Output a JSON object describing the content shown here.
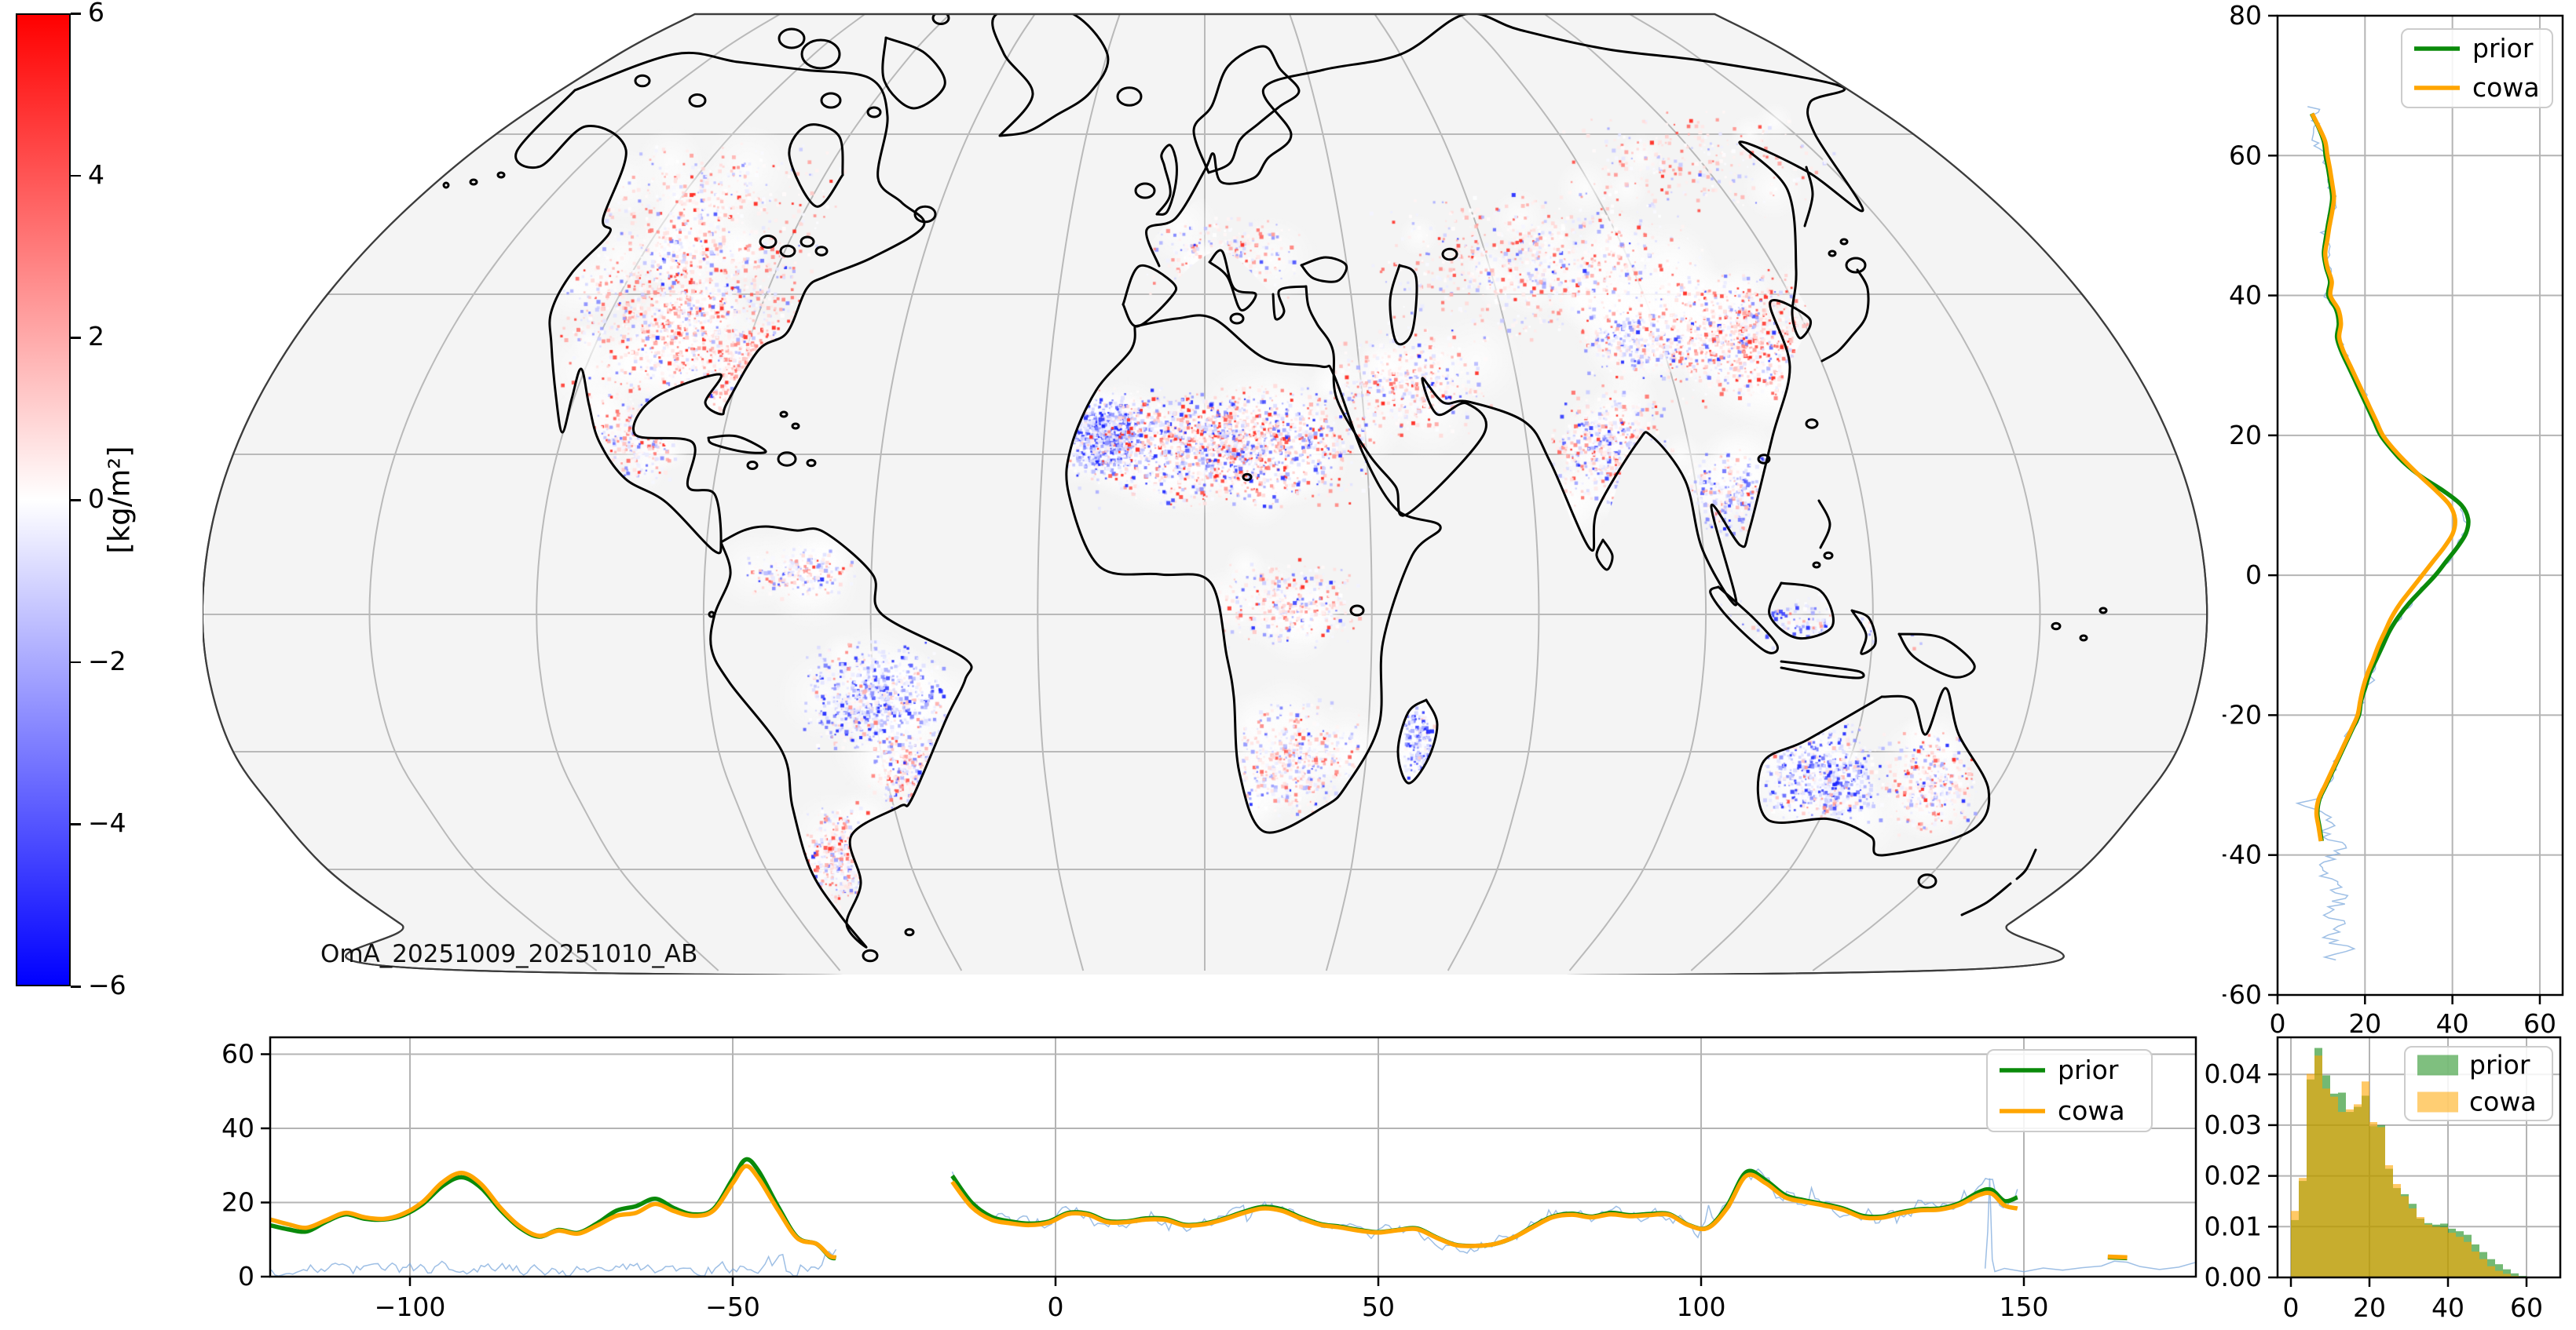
{
  "colorbar": {
    "label": "[kg/m²]",
    "ticks": [
      "6",
      "4",
      "2",
      "0",
      "−2",
      "−4",
      "−6"
    ],
    "tick_values": [
      6,
      4,
      2,
      0,
      -2,
      -4,
      -6
    ],
    "vmin": -6,
    "vmax": 6,
    "cmap": {
      "top": "#ff0000",
      "mid": "#ffffff",
      "bottom": "#0000ff"
    }
  },
  "map": {
    "annotation": "OmA_20251009_20251010_AB",
    "background": "#f4f4f4",
    "coast_color": "#000000",
    "grid_color": "#b9b9b9"
  },
  "legend": {
    "prior": "prior",
    "cowa": "cowa"
  },
  "colors": {
    "prior": "#0a8a0a",
    "cowa": "#ffa500",
    "noise": "rgba(125,170,220,0.75)",
    "grid": "#b4b4b4",
    "hist_prior": "rgba(0,128,0,0.55)",
    "hist_cowa": "rgba(255,165,0,0.6)"
  },
  "chart_data": [
    {
      "id": "zonal_profile",
      "type": "line",
      "orientation": "value_vs_latitude",
      "xlim": [
        0,
        65.2
      ],
      "xticks": [
        0,
        20,
        40,
        60
      ],
      "xtick_labels": [
        "0",
        "20",
        "40",
        "60"
      ],
      "ylim": [
        -60,
        80
      ],
      "yticks": [
        80,
        60,
        40,
        20,
        0,
        -20,
        -40,
        -60
      ],
      "ytick_labels": [
        "80",
        "60",
        "40",
        "20",
        "0",
        "−20",
        "−40",
        "−60"
      ],
      "legend": [
        "prior",
        "cowa"
      ],
      "lat": [
        66,
        64,
        62,
        60,
        58,
        56,
        54,
        52,
        50,
        48,
        46,
        44,
        42,
        40,
        38,
        36,
        34,
        32,
        30,
        28,
        26,
        24,
        22,
        20,
        18,
        16,
        14,
        12,
        10,
        8,
        6,
        4,
        2,
        0,
        -2,
        -4,
        -6,
        -8,
        -10,
        -12,
        -14,
        -16,
        -18,
        -20,
        -22,
        -24,
        -26,
        -28,
        -30,
        -32,
        -34,
        -36,
        -38
      ],
      "series": [
        {
          "name": "prior",
          "values": [
            7.8,
            9.4,
            10.6,
            11.0,
            11.6,
            12.1,
            12.5,
            12.1,
            11.5,
            11.0,
            10.6,
            11.1,
            12.0,
            11.6,
            13.4,
            14.0,
            13.6,
            14.6,
            16.1,
            17.6,
            19.1,
            20.6,
            22.1,
            23.6,
            26.1,
            29.1,
            33.1,
            38.1,
            42.1,
            43.6,
            43.1,
            41.1,
            38.6,
            36.1,
            33.1,
            30.1,
            27.6,
            25.6,
            24.1,
            22.6,
            21.1,
            20.1,
            19.1,
            18.6,
            17.1,
            15.6,
            14.1,
            12.6,
            11.1,
            9.6,
            9.1,
            9.6,
            10.1
          ]
        },
        {
          "name": "cowa",
          "values": [
            7.9,
            9.5,
            10.9,
            11.4,
            12.0,
            12.5,
            12.9,
            12.5,
            11.9,
            11.4,
            10.9,
            11.4,
            12.4,
            12.1,
            13.9,
            14.5,
            14.1,
            15.1,
            16.6,
            18.1,
            19.6,
            21.1,
            22.6,
            24.1,
            26.6,
            29.6,
            32.9,
            36.4,
            39.4,
            40.6,
            40.1,
            38.1,
            35.6,
            33.1,
            30.6,
            28.1,
            26.1,
            24.6,
            23.1,
            21.9,
            20.6,
            19.6,
            18.9,
            18.3,
            16.9,
            15.4,
            13.9,
            12.4,
            10.9,
            9.4,
            8.9,
            9.4,
            9.9
          ]
        }
      ]
    },
    {
      "id": "meridional_profile",
      "type": "line",
      "orientation": "value_vs_longitude",
      "xlim": [
        -122,
        177
      ],
      "xticks": [
        -100,
        -50,
        0,
        50,
        100,
        150
      ],
      "xtick_labels": [
        "−100",
        "−50",
        "0",
        "50",
        "100",
        "150"
      ],
      "ylim": [
        0,
        64.5
      ],
      "yticks": [
        0,
        20,
        40,
        60
      ],
      "ytick_labels": [
        "0",
        "20",
        "40",
        "60"
      ],
      "legend": [
        "prior",
        "cowa"
      ],
      "x": [
        -122,
        -119,
        -116,
        -113,
        -110,
        -107,
        -104,
        -101,
        -98,
        -95,
        -92,
        -89,
        -86,
        -83,
        -80,
        -77,
        -74,
        -71,
        -68,
        -65,
        -62,
        -59,
        -56,
        -53,
        -50,
        -48,
        -46,
        -43,
        -40,
        -37,
        -35,
        -34,
        -30,
        -25,
        -20,
        -16,
        -13,
        -10,
        -7,
        -4,
        -1,
        2,
        5,
        8,
        11,
        14,
        17,
        20,
        23,
        26,
        29,
        32,
        35,
        38,
        41,
        44,
        47,
        50,
        53,
        56,
        59,
        62,
        65,
        68,
        71,
        74,
        77,
        80,
        83,
        86,
        89,
        92,
        95,
        98,
        101,
        104,
        107,
        110,
        113,
        116,
        119,
        122,
        125,
        128,
        131,
        134,
        137,
        140,
        143,
        145,
        147,
        149,
        152,
        156,
        160,
        163,
        166
      ],
      "series": [
        {
          "name": "prior",
          "values": [
            14.0,
            12.8,
            12.2,
            14.8,
            16.8,
            15.6,
            15.4,
            16.6,
            19.6,
            24.4,
            26.8,
            24.0,
            18.0,
            13.2,
            10.8,
            12.6,
            11.8,
            14.4,
            17.8,
            19.0,
            21.0,
            18.4,
            16.8,
            18.2,
            26.4,
            31.6,
            28.5,
            19.0,
            10.6,
            8.8,
            5.4,
            5.0,
            null,
            null,
            null,
            27.2,
            20.0,
            16.2,
            14.9,
            14.3,
            14.9,
            17.2,
            17.0,
            15.0,
            14.9,
            15.7,
            15.6,
            14.0,
            14.3,
            15.6,
            17.4,
            18.8,
            18.2,
            16.0,
            14.2,
            13.5,
            12.6,
            12.0,
            12.6,
            13.0,
            10.6,
            8.6,
            8.3,
            8.8,
            10.6,
            13.6,
            16.2,
            17.0,
            16.2,
            17.2,
            16.6,
            16.9,
            16.9,
            14.0,
            13.2,
            19.0,
            28.2,
            26.0,
            22.0,
            20.6,
            19.6,
            18.4,
            16.4,
            16.2,
            17.4,
            18.2,
            18.4,
            19.8,
            22.8,
            23.4,
            20.4,
            21.4,
            null,
            null,
            null,
            5.2,
            5.0
          ]
        },
        {
          "name": "cowa",
          "values": [
            15.6,
            14.2,
            13.2,
            15.2,
            17.2,
            16.0,
            15.6,
            17.0,
            20.2,
            25.4,
            28.0,
            25.0,
            18.6,
            13.6,
            11.0,
            12.4,
            11.6,
            13.8,
            16.4,
            17.2,
            19.6,
            17.6,
            16.4,
            17.8,
            25.2,
            29.8,
            26.5,
            18.0,
            10.4,
            8.8,
            5.6,
            5.2,
            null,
            null,
            null,
            25.6,
            18.8,
            15.4,
            14.4,
            13.9,
            14.6,
            16.9,
            16.7,
            14.7,
            14.7,
            15.4,
            15.3,
            13.8,
            14.1,
            15.4,
            17.1,
            18.4,
            17.8,
            15.7,
            14.0,
            13.3,
            12.4,
            11.9,
            12.5,
            12.8,
            10.5,
            8.5,
            8.3,
            8.8,
            10.6,
            13.4,
            16.0,
            16.7,
            16.0,
            16.8,
            16.3,
            16.6,
            16.7,
            13.9,
            13.1,
            18.4,
            27.2,
            25.2,
            21.4,
            20.2,
            19.2,
            18.0,
            16.0,
            15.9,
            17.1,
            17.9,
            18.1,
            19.4,
            22.0,
            22.4,
            19.2,
            18.4,
            null,
            null,
            null,
            5.4,
            5.2
          ]
        }
      ]
    },
    {
      "id": "histogram",
      "type": "bar",
      "bin_start": 0,
      "bin_width": 2,
      "xlim": [
        -3.4,
        68.6
      ],
      "xticks": [
        0,
        20,
        40,
        60
      ],
      "xtick_labels": [
        "0",
        "20",
        "40",
        "60"
      ],
      "ylim": [
        0,
        0.0473
      ],
      "yticks": [
        0.0,
        0.01,
        0.02,
        0.03,
        0.04
      ],
      "ytick_labels": [
        "0.00",
        "0.01",
        "0.02",
        "0.03",
        "0.04"
      ],
      "legend": [
        "prior",
        "cowa"
      ],
      "series": [
        {
          "name": "prior",
          "values": [
            0.0113,
            0.019,
            0.039,
            0.0452,
            0.0398,
            0.0362,
            0.0364,
            0.0326,
            0.0336,
            0.0358,
            0.0298,
            0.03,
            0.0214,
            0.0176,
            0.0164,
            0.0145,
            0.0116,
            0.0107,
            0.0104,
            0.0106,
            0.0096,
            0.0091,
            0.0084,
            0.0065,
            0.005,
            0.0036,
            0.0026,
            0.0016,
            0.0008,
            0.0003
          ]
        },
        {
          "name": "cowa",
          "values": [
            0.0131,
            0.0196,
            0.0401,
            0.0437,
            0.0372,
            0.0356,
            0.0326,
            0.0331,
            0.0341,
            0.0386,
            0.0306,
            0.0296,
            0.0221,
            0.0184,
            0.016,
            0.0136,
            0.0119,
            0.0104,
            0.01,
            0.0099,
            0.0088,
            0.008,
            0.007,
            0.0051,
            0.0036,
            0.0022,
            0.0013,
            0.0007,
            0.0003,
            0.0001
          ]
        }
      ]
    }
  ]
}
